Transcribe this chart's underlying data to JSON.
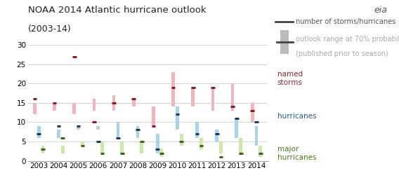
{
  "title": "NOAA 2014 Atlantic hurricane outlook",
  "subtitle": "(2003-14)",
  "years": [
    2003,
    2004,
    2005,
    2006,
    2007,
    2008,
    2009,
    2010,
    2011,
    2012,
    2013,
    2014
  ],
  "named_storms": {
    "range_low": [
      12,
      13,
      12,
      13,
      13,
      14,
      9,
      14,
      14,
      13,
      13,
      10
    ],
    "range_high": [
      15,
      15,
      15,
      16,
      17,
      16,
      14,
      23,
      19,
      19,
      20,
      15
    ],
    "actual": [
      16,
      15,
      27,
      10,
      15,
      16,
      9,
      19,
      19,
      19,
      14,
      13
    ]
  },
  "hurricanes": {
    "range_low": [
      6,
      6,
      8,
      8,
      6,
      6,
      2,
      8,
      6,
      5,
      6,
      4
    ],
    "range_high": [
      9,
      8,
      9,
      9,
      10,
      9,
      7,
      14,
      10,
      8,
      11,
      9
    ],
    "actual": [
      7,
      9,
      9,
      5,
      6,
      8,
      3,
      12,
      7,
      7,
      11,
      10
    ]
  },
  "major_hurricanes": {
    "range_low": [
      2,
      2,
      4,
      2,
      2,
      2,
      1,
      4,
      3,
      2,
      2,
      1
    ],
    "range_high": [
      4,
      4,
      5,
      5,
      5,
      5,
      3,
      7,
      6,
      5,
      6,
      4
    ],
    "actual": [
      3,
      6,
      4,
      2,
      2,
      5,
      2,
      5,
      4,
      1,
      2,
      2
    ]
  },
  "colors": {
    "named_range": "#f2b3bc",
    "named_actual": "#8b1a2a",
    "hurricane_range": "#a8d4e8",
    "hurricane_actual": "#1c3d5e",
    "major_range": "#cce8a8",
    "major_actual": "#3d6618"
  },
  "ylim": [
    0,
    30
  ],
  "yticks": [
    0,
    5,
    10,
    15,
    20,
    25,
    30
  ],
  "background": "#ffffff",
  "text_color_named": "#9b2030",
  "text_color_hurricane": "#1c6080",
  "text_color_major": "#4a7820",
  "title_fontsize": 9.5,
  "tick_fontsize": 7.5,
  "label_fontsize": 7.5,
  "legend_fontsize": 7.0
}
